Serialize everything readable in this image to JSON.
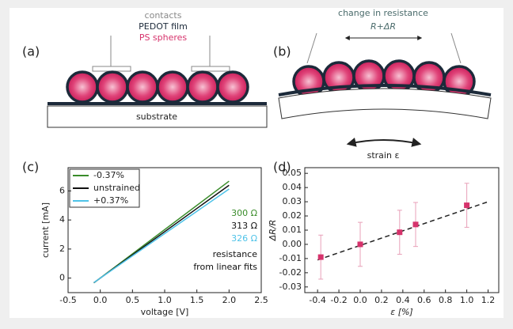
{
  "panel_a": {
    "label": "(a)",
    "contacts": "contacts",
    "film": "PEDOT film",
    "spheres": "PS spheres",
    "substrate": "substrate"
  },
  "panel_b": {
    "label": "(b)",
    "change": "change in resistance",
    "resistance": "R+ΔR",
    "strain": "strain ε"
  },
  "chart_data": [
    {
      "type": "line",
      "panel_label": "(c)",
      "xlabel": "voltage [V]",
      "ylabel": "current [mA]",
      "xlim": [
        -0.5,
        2.5
      ],
      "xticks": [
        -0.5,
        {
          "value": 0,
          "label": "0.0"
        },
        0.5,
        {
          "value": 1,
          "label": "1.0"
        },
        1.5,
        {
          "value": 2,
          "label": "2.0"
        },
        2.5
      ],
      "ylim": [
        -1,
        7.6
      ],
      "yticks": [
        0,
        2,
        4,
        6
      ],
      "series": [
        {
          "name": "-0.37%",
          "color": "#3a8c2a",
          "x": [
            -0.1,
            2.0
          ],
          "values": [
            -0.33,
            6.67
          ]
        },
        {
          "name": "unstrained",
          "color": "#111111",
          "x": [
            -0.1,
            2.0
          ],
          "values": [
            -0.32,
            6.39
          ]
        },
        {
          "name": "+0.37%",
          "color": "#4fc3e8",
          "x": [
            -0.1,
            2.0
          ],
          "values": [
            -0.31,
            6.13
          ]
        }
      ],
      "annotations": [
        {
          "text": "300 Ω",
          "color": "#3a8c2a"
        },
        {
          "text": "313 Ω",
          "color": "#111111"
        },
        {
          "text": "326 Ω",
          "color": "#4fc3e8"
        },
        {
          "text": "resistance",
          "color": "#111111"
        },
        {
          "text": "from linear fits",
          "color": "#111111"
        }
      ]
    },
    {
      "type": "scatter",
      "panel_label": "(d)",
      "xlabel": "ε [%]",
      "ylabel": "ΔR/R",
      "xlim": [
        -0.52,
        1.3
      ],
      "xticks": [
        -0.4,
        -0.2,
        {
          "value": 0,
          "label": "0.0"
        },
        0.2,
        0.4,
        0.6,
        0.8,
        {
          "value": 1,
          "label": "1.0"
        },
        1.2
      ],
      "ylim": [
        -0.034,
        0.054
      ],
      "yticks": [
        -0.03,
        -0.02,
        -0.01,
        {
          "value": 0,
          "label": "0.00"
        },
        0.01,
        0.02,
        0.03,
        0.04,
        0.05
      ],
      "series": [
        {
          "color": "#d6336c",
          "x": [
            -0.37,
            0,
            0.37,
            0.52,
            1.0
          ],
          "values": [
            -0.009,
            0,
            0.0085,
            0.014,
            0.0275
          ],
          "errors": [
            0.0155,
            0.0155,
            0.0155,
            0.0155,
            0.0155
          ]
        }
      ],
      "fit": {
        "color": "#222222",
        "x": [
          -0.4,
          1.2
        ],
        "values": [
          -0.011,
          0.03
        ]
      }
    }
  ]
}
